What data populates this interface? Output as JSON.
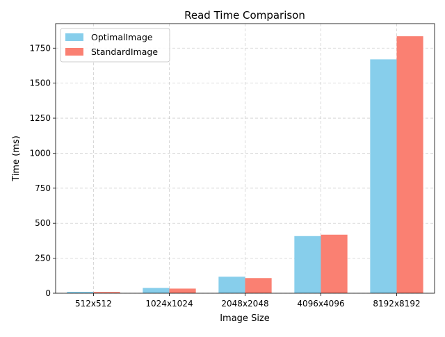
{
  "chart_data": {
    "type": "bar",
    "title": "Read Time Comparison",
    "xlabel": "Image Size",
    "ylabel": "Time (ms)",
    "categories": [
      "512x512",
      "1024x1024",
      "2048x2048",
      "4096x4096",
      "8192x8192"
    ],
    "series": [
      {
        "name": "OptimalImage",
        "color": "#87ceeb",
        "values": [
          10,
          38,
          118,
          408,
          1670
        ]
      },
      {
        "name": "StandardImage",
        "color": "#fa8072",
        "values": [
          9,
          33,
          108,
          418,
          1835
        ]
      }
    ],
    "ylim": [
      0,
      1925
    ],
    "yticks": [
      0,
      250,
      500,
      750,
      1000,
      1250,
      1500,
      1750
    ],
    "grid": true,
    "legend_position": "top-left"
  }
}
